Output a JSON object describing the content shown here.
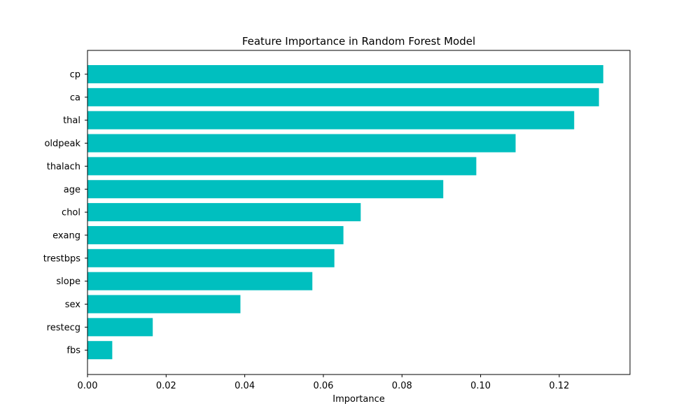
{
  "chart_data": {
    "type": "bar",
    "orientation": "horizontal",
    "title": "Feature Importance in Random Forest Model",
    "xlabel": "Importance",
    "ylabel": "",
    "xlim": [
      0,
      0.138
    ],
    "x_ticks": [
      0.0,
      0.02,
      0.04,
      0.06,
      0.08,
      0.1,
      0.12
    ],
    "x_tick_labels": [
      "0.00",
      "0.02",
      "0.04",
      "0.06",
      "0.08",
      "0.10",
      "0.12"
    ],
    "categories": [
      "cp",
      "ca",
      "thal",
      "oldpeak",
      "thalach",
      "age",
      "chol",
      "exang",
      "trestbps",
      "slope",
      "sex",
      "restecg",
      "fbs"
    ],
    "values": [
      0.1312,
      0.1301,
      0.1238,
      0.1089,
      0.0989,
      0.0905,
      0.0695,
      0.0651,
      0.0628,
      0.0572,
      0.0389,
      0.0166,
      0.0063
    ],
    "bar_color": "#00BFBF",
    "grid": false,
    "legend": "none"
  }
}
